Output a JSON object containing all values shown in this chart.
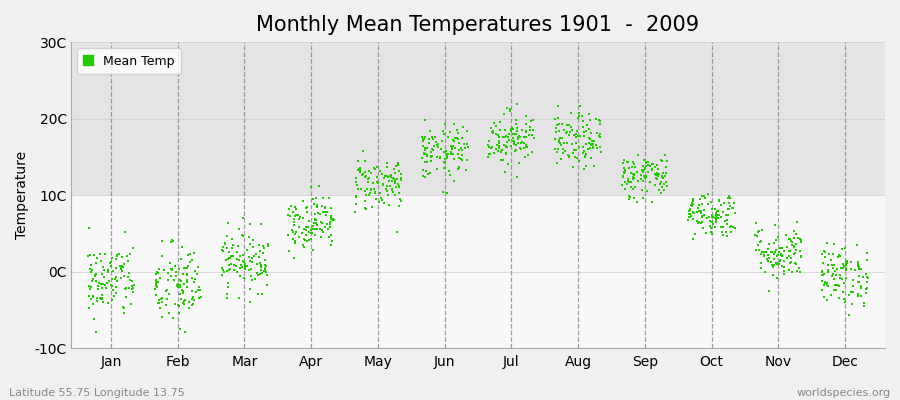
{
  "title": "Monthly Mean Temperatures 1901  -  2009",
  "ylabel": "Temperature",
  "xlabel": "",
  "ylim": [
    -10,
    30
  ],
  "yticks": [
    -10,
    0,
    10,
    20,
    30
  ],
  "ytick_labels": [
    "-10C",
    "0C",
    "10C",
    "20C",
    "30C"
  ],
  "month_labels": [
    "Jan",
    "Feb",
    "Mar",
    "Apr",
    "May",
    "Jun",
    "Jul",
    "Aug",
    "Sep",
    "Oct",
    "Nov",
    "Dec"
  ],
  "marker_color": "#22cc00",
  "marker_size": 4,
  "fig_bg_color": "#f0f0f0",
  "plot_bg_color": "#f0f0f0",
  "band_upper_color": "#e4e4e4",
  "band_lower_color": "#f8f8f8",
  "title_fontsize": 15,
  "axis_fontsize": 10,
  "tick_fontsize": 10,
  "legend_label": "Mean Temp",
  "footer_left": "Latitude 55.75 Longitude 13.75",
  "footer_right": "worldspecies.org",
  "n_years": 109,
  "monthly_means": [
    -1.2,
    -2.0,
    1.5,
    6.5,
    11.5,
    15.5,
    17.5,
    17.0,
    12.5,
    7.5,
    2.5,
    -0.5
  ],
  "monthly_stds": [
    2.5,
    2.8,
    2.0,
    1.8,
    1.8,
    1.8,
    1.8,
    1.8,
    1.5,
    1.5,
    1.8,
    2.0
  ],
  "seed": 42
}
